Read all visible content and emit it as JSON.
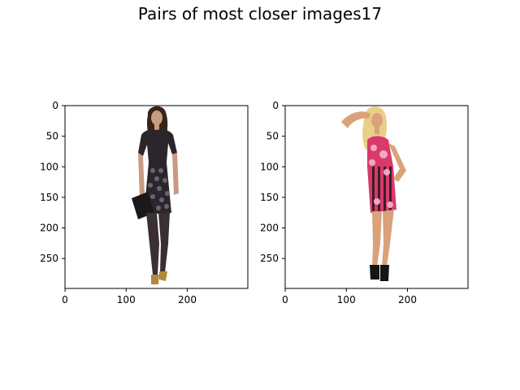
{
  "title": "Pairs of most closer images17",
  "chart_data": [
    {
      "type": "image",
      "xlim": [
        0,
        299
      ],
      "ylim": [
        299,
        0
      ],
      "xticks": [
        "0",
        "100",
        "200"
      ],
      "xtick_values": [
        0,
        100,
        200
      ],
      "yticks": [
        "0",
        "50",
        "100",
        "150",
        "200",
        "250"
      ],
      "ytick_values": [
        0,
        50,
        100,
        150,
        200,
        250
      ],
      "image_subject": "woman in dark patterned short-sleeve dress holding clutch",
      "colors": {
        "dress": "#2b262b",
        "pattern": "#6b6470",
        "skin": "#c89c82",
        "hair": "#3a2418",
        "shoes": "#b08a3c"
      }
    },
    {
      "type": "image",
      "xlim": [
        0,
        299
      ],
      "ylim": [
        299,
        0
      ],
      "xticks": [
        "0",
        "100",
        "200"
      ],
      "xtick_values": [
        0,
        100,
        200
      ],
      "yticks": [
        "0",
        "50",
        "100",
        "150",
        "200",
        "250"
      ],
      "ytick_values": [
        0,
        50,
        100,
        150,
        200,
        250
      ],
      "image_subject": "blonde woman in pink striped floral sleeveless dress",
      "colors": {
        "dress": "#d83a6a",
        "stripe": "#3a1f2a",
        "skin": "#d9a27a",
        "hair": "#e8cf8a",
        "shoes": "#151515"
      }
    }
  ]
}
